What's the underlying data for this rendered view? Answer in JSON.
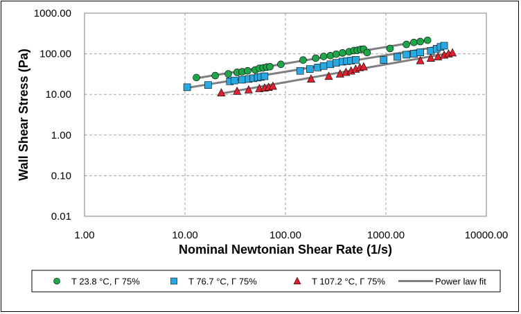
{
  "chart_data": {
    "type": "scatter",
    "xscale": "log",
    "yscale": "log",
    "xlim": [
      1,
      10000
    ],
    "ylim": [
      0.01,
      1000
    ],
    "x_ticks": [
      "1.00",
      "10.00",
      "100.00",
      "1000.00",
      "10000.00"
    ],
    "y_ticks": [
      "1000.00",
      "100.00",
      "10.00",
      "1.00",
      "0.10",
      "0.01"
    ],
    "xlabel": "Nominal Newtonian Shear Rate (1/s)",
    "ylabel": "Wall Shear Stress (Pa)",
    "grid": "major, dashed",
    "legend_position": "bottom",
    "colors": {
      "series1": "#1fa64a",
      "series2": "#29a9e1",
      "series3": "#e0202e",
      "fit": "#808080"
    },
    "series": [
      {
        "name": "T  23.8  °C, Γ 75%",
        "marker": "circle",
        "points": [
          [
            13,
            26
          ],
          [
            20,
            29
          ],
          [
            27,
            32
          ],
          [
            33,
            35
          ],
          [
            37,
            36
          ],
          [
            42,
            38
          ],
          [
            50,
            40
          ],
          [
            55,
            44
          ],
          [
            60,
            45
          ],
          [
            65,
            47
          ],
          [
            70,
            48
          ],
          [
            90,
            55
          ],
          [
            150,
            70
          ],
          [
            200,
            78
          ],
          [
            240,
            86
          ],
          [
            280,
            90
          ],
          [
            320,
            98
          ],
          [
            370,
            105
          ],
          [
            430,
            112
          ],
          [
            480,
            120
          ],
          [
            520,
            122
          ],
          [
            560,
            128
          ],
          [
            600,
            130
          ],
          [
            650,
            107
          ],
          [
            1100,
            135
          ],
          [
            1600,
            170
          ],
          [
            1900,
            190
          ],
          [
            2200,
            200
          ],
          [
            2600,
            215
          ]
        ]
      },
      {
        "name": "T  76.7  °C, Γ 75%",
        "marker": "square",
        "points": [
          [
            10.5,
            15
          ],
          [
            17,
            17
          ],
          [
            28,
            21
          ],
          [
            31,
            22
          ],
          [
            37,
            23
          ],
          [
            43,
            24
          ],
          [
            48,
            25
          ],
          [
            53,
            26
          ],
          [
            57,
            27
          ],
          [
            62,
            28
          ],
          [
            140,
            38
          ],
          [
            175,
            42
          ],
          [
            210,
            46
          ],
          [
            240,
            50
          ],
          [
            280,
            55
          ],
          [
            320,
            60
          ],
          [
            370,
            64
          ],
          [
            410,
            66
          ],
          [
            450,
            68
          ],
          [
            500,
            71
          ],
          [
            950,
            70
          ],
          [
            1300,
            84
          ],
          [
            1600,
            95
          ],
          [
            1900,
            100
          ],
          [
            2200,
            108
          ],
          [
            2800,
            118
          ],
          [
            3200,
            133
          ],
          [
            3500,
            148
          ],
          [
            3800,
            158
          ]
        ]
      },
      {
        "name": "T  107.2  °C, Γ 75%",
        "marker": "triangle",
        "points": [
          [
            23,
            11
          ],
          [
            33,
            12
          ],
          [
            43,
            13
          ],
          [
            55,
            14
          ],
          [
            62,
            14.5
          ],
          [
            68,
            15
          ],
          [
            75,
            16
          ],
          [
            180,
            24
          ],
          [
            270,
            28
          ],
          [
            350,
            32
          ],
          [
            400,
            35
          ],
          [
            450,
            38
          ],
          [
            500,
            42
          ],
          [
            550,
            46
          ],
          [
            600,
            48
          ],
          [
            2200,
            68
          ],
          [
            2800,
            78
          ],
          [
            3300,
            85
          ],
          [
            3800,
            93
          ],
          [
            4200,
            100
          ],
          [
            4600,
            106
          ]
        ]
      }
    ],
    "fit_lines": [
      {
        "name": "Power law fit",
        "from": [
          13,
          25
        ],
        "to": [
          2700,
          220
        ]
      },
      {
        "from": [
          10.5,
          14.5
        ],
        "to": [
          3900,
          160
        ]
      },
      {
        "from": [
          23,
          10.5
        ],
        "to": [
          4700,
          108
        ]
      }
    ],
    "legend": [
      {
        "label": "T  23.8  °C, Γ 75%",
        "marker": "circle"
      },
      {
        "label": "T  76.7  °C, Γ 75%",
        "marker": "square"
      },
      {
        "label": "T  107.2  °C, Γ 75%",
        "marker": "triangle"
      },
      {
        "label": "Power law fit",
        "marker": "line"
      }
    ]
  }
}
